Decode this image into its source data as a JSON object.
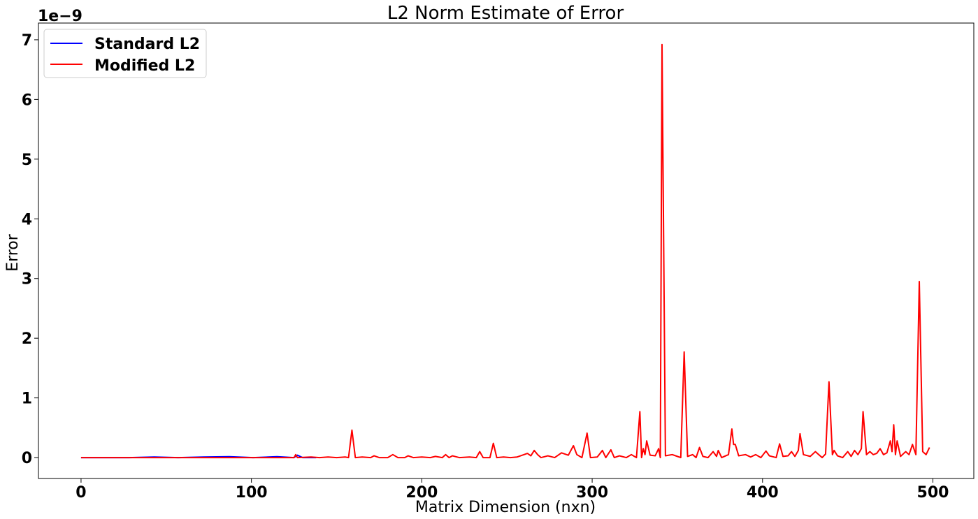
{
  "chart_data": {
    "type": "line",
    "title": "L2 Norm Estimate of Error",
    "xlabel": "Matrix Dimension (nxn)",
    "ylabel": "Error",
    "y_offset_label": "1e−9",
    "xlim": [
      -25,
      524
    ],
    "ylim": [
      -0.35,
      7.28
    ],
    "x_ticks": [
      0,
      100,
      200,
      300,
      400,
      500
    ],
    "y_ticks": [
      0,
      1,
      2,
      3,
      4,
      5,
      6,
      7
    ],
    "legend_position": "top-left",
    "grid": false,
    "series": [
      {
        "name": "Standard L2",
        "color": "#0000ff",
        "points": [
          [
            0,
            0.0
          ],
          [
            14,
            0.0
          ],
          [
            28,
            0.0
          ],
          [
            43,
            0.01
          ],
          [
            57,
            0.0
          ],
          [
            72,
            0.01
          ],
          [
            87,
            0.015
          ],
          [
            101,
            0.0
          ],
          [
            115,
            0.015
          ],
          [
            125,
            0.0
          ],
          [
            127,
            0.04
          ],
          [
            130,
            0.0
          ],
          [
            138,
            0.0
          ]
        ]
      },
      {
        "name": "Modified L2",
        "color": "#ff0000",
        "points": [
          [
            0,
            0.0
          ],
          [
            10,
            0.0
          ],
          [
            20,
            0.0
          ],
          [
            30,
            0.0
          ],
          [
            40,
            0.0
          ],
          [
            50,
            0.0
          ],
          [
            60,
            0.0
          ],
          [
            70,
            0.0
          ],
          [
            80,
            0.0
          ],
          [
            90,
            0.0
          ],
          [
            100,
            0.0
          ],
          [
            110,
            0.0
          ],
          [
            120,
            0.0
          ],
          [
            125,
            0.0
          ],
          [
            126,
            0.05
          ],
          [
            127,
            0.0
          ],
          [
            135,
            0.01
          ],
          [
            140,
            0.0
          ],
          [
            145,
            0.01
          ],
          [
            150,
            0.0
          ],
          [
            155,
            0.01
          ],
          [
            157,
            0.0
          ],
          [
            159,
            0.46
          ],
          [
            161,
            0.0
          ],
          [
            165,
            0.01
          ],
          [
            170,
            0.0
          ],
          [
            172,
            0.03
          ],
          [
            175,
            0.0
          ],
          [
            180,
            0.0
          ],
          [
            183,
            0.05
          ],
          [
            186,
            0.0
          ],
          [
            190,
            0.0
          ],
          [
            192,
            0.03
          ],
          [
            195,
            0.0
          ],
          [
            200,
            0.01
          ],
          [
            205,
            0.0
          ],
          [
            208,
            0.02
          ],
          [
            212,
            0.0
          ],
          [
            214,
            0.05
          ],
          [
            216,
            0.0
          ],
          [
            218,
            0.03
          ],
          [
            222,
            0.0
          ],
          [
            228,
            0.01
          ],
          [
            232,
            0.0
          ],
          [
            234,
            0.1
          ],
          [
            236,
            0.0
          ],
          [
            240,
            0.0
          ],
          [
            242,
            0.24
          ],
          [
            244,
            0.0
          ],
          [
            248,
            0.01
          ],
          [
            252,
            0.0
          ],
          [
            256,
            0.01
          ],
          [
            260,
            0.05
          ],
          [
            262,
            0.07
          ],
          [
            264,
            0.03
          ],
          [
            266,
            0.12
          ],
          [
            268,
            0.05
          ],
          [
            270,
            0.0
          ],
          [
            274,
            0.03
          ],
          [
            278,
            0.0
          ],
          [
            282,
            0.08
          ],
          [
            286,
            0.04
          ],
          [
            289,
            0.2
          ],
          [
            291,
            0.05
          ],
          [
            294,
            0.0
          ],
          [
            297,
            0.41
          ],
          [
            299,
            0.0
          ],
          [
            303,
            0.01
          ],
          [
            306,
            0.12
          ],
          [
            308,
            0.0
          ],
          [
            311,
            0.13
          ],
          [
            313,
            0.0
          ],
          [
            316,
            0.03
          ],
          [
            320,
            0.0
          ],
          [
            323,
            0.05
          ],
          [
            326,
            0.0
          ],
          [
            328,
            0.77
          ],
          [
            329,
            0.0
          ],
          [
            330,
            0.15
          ],
          [
            331,
            0.05
          ],
          [
            332,
            0.28
          ],
          [
            334,
            0.04
          ],
          [
            337,
            0.03
          ],
          [
            339,
            0.15
          ],
          [
            340,
            0.0
          ],
          [
            341,
            6.92
          ],
          [
            343,
            0.03
          ],
          [
            347,
            0.05
          ],
          [
            350,
            0.02
          ],
          [
            352,
            0.0
          ],
          [
            354,
            1.77
          ],
          [
            356,
            0.02
          ],
          [
            359,
            0.05
          ],
          [
            361,
            0.0
          ],
          [
            363,
            0.17
          ],
          [
            365,
            0.02
          ],
          [
            368,
            0.0
          ],
          [
            371,
            0.1
          ],
          [
            373,
            0.02
          ],
          [
            374,
            0.12
          ],
          [
            376,
            0.0
          ],
          [
            380,
            0.05
          ],
          [
            382,
            0.48
          ],
          [
            383,
            0.22
          ],
          [
            384,
            0.22
          ],
          [
            386,
            0.03
          ],
          [
            390,
            0.05
          ],
          [
            393,
            0.01
          ],
          [
            396,
            0.05
          ],
          [
            399,
            0.0
          ],
          [
            402,
            0.11
          ],
          [
            404,
            0.03
          ],
          [
            408,
            0.0
          ],
          [
            410,
            0.23
          ],
          [
            412,
            0.02
          ],
          [
            415,
            0.03
          ],
          [
            417,
            0.1
          ],
          [
            419,
            0.02
          ],
          [
            421,
            0.12
          ],
          [
            422,
            0.4
          ],
          [
            424,
            0.05
          ],
          [
            428,
            0.02
          ],
          [
            431,
            0.1
          ],
          [
            433,
            0.05
          ],
          [
            435,
            0.0
          ],
          [
            437,
            0.06
          ],
          [
            439,
            1.27
          ],
          [
            441,
            0.05
          ],
          [
            442,
            0.12
          ],
          [
            444,
            0.03
          ],
          [
            447,
            0.0
          ],
          [
            450,
            0.1
          ],
          [
            452,
            0.02
          ],
          [
            454,
            0.12
          ],
          [
            456,
            0.05
          ],
          [
            458,
            0.15
          ],
          [
            459,
            0.77
          ],
          [
            461,
            0.05
          ],
          [
            463,
            0.1
          ],
          [
            465,
            0.05
          ],
          [
            467,
            0.07
          ],
          [
            469,
            0.15
          ],
          [
            471,
            0.05
          ],
          [
            473,
            0.08
          ],
          [
            475,
            0.28
          ],
          [
            476,
            0.1
          ],
          [
            477,
            0.55
          ],
          [
            478,
            0.05
          ],
          [
            479,
            0.28
          ],
          [
            481,
            0.02
          ],
          [
            484,
            0.1
          ],
          [
            486,
            0.05
          ],
          [
            488,
            0.22
          ],
          [
            490,
            0.05
          ],
          [
            492,
            2.95
          ],
          [
            494,
            0.1
          ],
          [
            496,
            0.05
          ],
          [
            498,
            0.17
          ]
        ]
      }
    ]
  }
}
